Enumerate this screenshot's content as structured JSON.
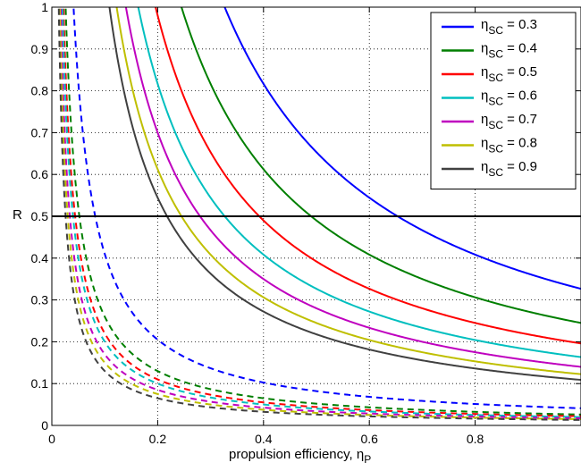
{
  "chart_data": {
    "type": "line",
    "title": "",
    "xlabel": {
      "text": "propulsion efficiency, η",
      "subscript": "P"
    },
    "ylabel": "R",
    "xlim": [
      0,
      1
    ],
    "ylim": [
      0,
      1
    ],
    "xticks": [
      0,
      0.2,
      0.4,
      0.6,
      0.8
    ],
    "xtick_labels": [
      "0",
      "0.2",
      "0.4",
      "0.6",
      "0.8"
    ],
    "yticks": [
      0,
      0.1,
      0.2,
      0.3,
      0.4,
      0.5,
      0.6,
      0.7,
      0.8,
      0.9,
      1
    ],
    "ytick_labels": [
      "0",
      "0.1",
      "0.2",
      "0.3",
      "0.4",
      "0.5",
      "0.6",
      "0.7",
      "0.8",
      "0.9",
      "1"
    ],
    "grid": true,
    "legend_position": "top-right",
    "reference_line": {
      "y": 0.5,
      "color": "#000000"
    },
    "curve_model": "R = k / (η_SC · η_P), solid; dashed branch R = k / η_P",
    "series": [
      {
        "name_prefix": "η",
        "name_subscript": "SC",
        "name_suffix": " = 0.3",
        "eta_sc": 0.3,
        "k": 0.098,
        "color": "#0000ff"
      },
      {
        "name_prefix": "η",
        "name_subscript": "SC",
        "name_suffix": " = 0.4",
        "eta_sc": 0.4,
        "k": 0.098,
        "color": "#007f00"
      },
      {
        "name_prefix": "η",
        "name_subscript": "SC",
        "name_suffix": " = 0.5",
        "eta_sc": 0.5,
        "k": 0.098,
        "color": "#ff0000"
      },
      {
        "name_prefix": "η",
        "name_subscript": "SC",
        "name_suffix": " = 0.6",
        "eta_sc": 0.6,
        "k": 0.098,
        "color": "#00bfbf"
      },
      {
        "name_prefix": "η",
        "name_subscript": "SC",
        "name_suffix": " = 0.7",
        "eta_sc": 0.7,
        "k": 0.098,
        "color": "#bf00bf"
      },
      {
        "name_prefix": "η",
        "name_subscript": "SC",
        "name_suffix": " = 0.8",
        "eta_sc": 0.8,
        "k": 0.098,
        "color": "#bfbf00"
      },
      {
        "name_prefix": "η",
        "name_subscript": "SC",
        "name_suffix": " = 0.9",
        "eta_sc": 0.9,
        "k": 0.098,
        "color": "#404040"
      }
    ],
    "dashed_k": [
      0.041,
      0.026,
      0.022,
      0.02,
      0.017,
      0.015,
      0.013
    ]
  }
}
